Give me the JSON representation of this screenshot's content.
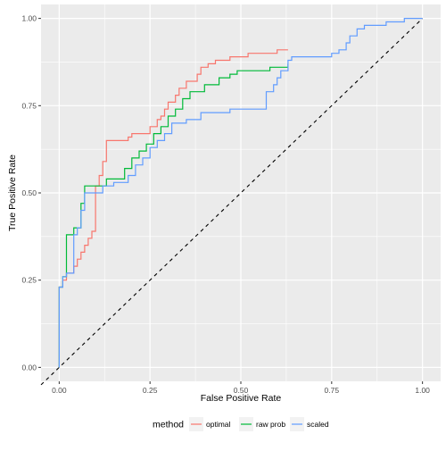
{
  "chart_data": {
    "type": "line",
    "xlabel": "False Positive Rate",
    "ylabel": "True Positive Rate",
    "xlim": [
      -0.05,
      1.05
    ],
    "ylim": [
      -0.04,
      1.04
    ],
    "x_ticks": [
      "0.00",
      "0.25",
      "0.50",
      "0.75",
      "1.00"
    ],
    "y_ticks": [
      "0.00",
      "0.25",
      "0.50",
      "0.75",
      "1.00"
    ],
    "grid": true,
    "legend": {
      "title": "method",
      "position": "bottom"
    },
    "reference_line": {
      "from": [
        0,
        0
      ],
      "to": [
        1,
        1
      ],
      "style": "dashed",
      "color": "#000000"
    },
    "series": [
      {
        "name": "optimal",
        "color": "#F8766D",
        "points": [
          [
            0.0,
            0.0
          ],
          [
            0.0,
            0.23
          ],
          [
            0.01,
            0.23
          ],
          [
            0.01,
            0.25
          ],
          [
            0.02,
            0.25
          ],
          [
            0.02,
            0.27
          ],
          [
            0.04,
            0.27
          ],
          [
            0.04,
            0.29
          ],
          [
            0.05,
            0.29
          ],
          [
            0.05,
            0.31
          ],
          [
            0.06,
            0.31
          ],
          [
            0.06,
            0.33
          ],
          [
            0.07,
            0.33
          ],
          [
            0.07,
            0.35
          ],
          [
            0.08,
            0.35
          ],
          [
            0.08,
            0.37
          ],
          [
            0.09,
            0.37
          ],
          [
            0.09,
            0.39
          ],
          [
            0.1,
            0.39
          ],
          [
            0.1,
            0.52
          ],
          [
            0.11,
            0.52
          ],
          [
            0.11,
            0.55
          ],
          [
            0.12,
            0.55
          ],
          [
            0.12,
            0.59
          ],
          [
            0.13,
            0.59
          ],
          [
            0.13,
            0.65
          ],
          [
            0.19,
            0.65
          ],
          [
            0.19,
            0.66
          ],
          [
            0.2,
            0.66
          ],
          [
            0.2,
            0.67
          ],
          [
            0.25,
            0.67
          ],
          [
            0.25,
            0.69
          ],
          [
            0.27,
            0.69
          ],
          [
            0.27,
            0.71
          ],
          [
            0.28,
            0.71
          ],
          [
            0.28,
            0.72
          ],
          [
            0.29,
            0.72
          ],
          [
            0.29,
            0.74
          ],
          [
            0.3,
            0.74
          ],
          [
            0.3,
            0.76
          ],
          [
            0.32,
            0.76
          ],
          [
            0.32,
            0.78
          ],
          [
            0.33,
            0.78
          ],
          [
            0.33,
            0.8
          ],
          [
            0.35,
            0.8
          ],
          [
            0.35,
            0.82
          ],
          [
            0.38,
            0.82
          ],
          [
            0.38,
            0.84
          ],
          [
            0.39,
            0.84
          ],
          [
            0.39,
            0.86
          ],
          [
            0.41,
            0.86
          ],
          [
            0.41,
            0.87
          ],
          [
            0.43,
            0.87
          ],
          [
            0.43,
            0.88
          ],
          [
            0.47,
            0.88
          ],
          [
            0.47,
            0.89
          ],
          [
            0.52,
            0.89
          ],
          [
            0.52,
            0.9
          ],
          [
            0.6,
            0.9
          ],
          [
            0.6,
            0.91
          ],
          [
            0.63,
            0.91
          ]
        ]
      },
      {
        "name": "raw prob",
        "color": "#00BA38",
        "points": [
          [
            0.0,
            0.0
          ],
          [
            0.0,
            0.23
          ],
          [
            0.01,
            0.23
          ],
          [
            0.01,
            0.26
          ],
          [
            0.02,
            0.26
          ],
          [
            0.02,
            0.38
          ],
          [
            0.04,
            0.38
          ],
          [
            0.04,
            0.4
          ],
          [
            0.06,
            0.4
          ],
          [
            0.06,
            0.47
          ],
          [
            0.07,
            0.47
          ],
          [
            0.07,
            0.52
          ],
          [
            0.13,
            0.52
          ],
          [
            0.13,
            0.54
          ],
          [
            0.18,
            0.54
          ],
          [
            0.18,
            0.57
          ],
          [
            0.2,
            0.57
          ],
          [
            0.2,
            0.6
          ],
          [
            0.22,
            0.6
          ],
          [
            0.22,
            0.62
          ],
          [
            0.24,
            0.62
          ],
          [
            0.24,
            0.64
          ],
          [
            0.26,
            0.64
          ],
          [
            0.26,
            0.67
          ],
          [
            0.28,
            0.67
          ],
          [
            0.28,
            0.69
          ],
          [
            0.3,
            0.69
          ],
          [
            0.3,
            0.72
          ],
          [
            0.32,
            0.72
          ],
          [
            0.32,
            0.74
          ],
          [
            0.34,
            0.74
          ],
          [
            0.34,
            0.77
          ],
          [
            0.36,
            0.77
          ],
          [
            0.36,
            0.79
          ],
          [
            0.4,
            0.79
          ],
          [
            0.4,
            0.81
          ],
          [
            0.44,
            0.81
          ],
          [
            0.44,
            0.83
          ],
          [
            0.47,
            0.83
          ],
          [
            0.47,
            0.84
          ],
          [
            0.49,
            0.84
          ],
          [
            0.49,
            0.85
          ],
          [
            0.58,
            0.85
          ],
          [
            0.58,
            0.86
          ],
          [
            0.63,
            0.86
          ],
          [
            0.63,
            0.87
          ]
        ]
      },
      {
        "name": "scaled",
        "color": "#619CFF",
        "points": [
          [
            0.0,
            0.0
          ],
          [
            0.0,
            0.23
          ],
          [
            0.01,
            0.23
          ],
          [
            0.01,
            0.26
          ],
          [
            0.02,
            0.26
          ],
          [
            0.02,
            0.27
          ],
          [
            0.04,
            0.27
          ],
          [
            0.04,
            0.38
          ],
          [
            0.05,
            0.38
          ],
          [
            0.05,
            0.4
          ],
          [
            0.06,
            0.4
          ],
          [
            0.06,
            0.45
          ],
          [
            0.07,
            0.45
          ],
          [
            0.07,
            0.5
          ],
          [
            0.12,
            0.5
          ],
          [
            0.12,
            0.52
          ],
          [
            0.15,
            0.52
          ],
          [
            0.15,
            0.53
          ],
          [
            0.19,
            0.53
          ],
          [
            0.19,
            0.55
          ],
          [
            0.21,
            0.55
          ],
          [
            0.21,
            0.58
          ],
          [
            0.23,
            0.58
          ],
          [
            0.23,
            0.6
          ],
          [
            0.25,
            0.6
          ],
          [
            0.25,
            0.63
          ],
          [
            0.27,
            0.63
          ],
          [
            0.27,
            0.65
          ],
          [
            0.29,
            0.65
          ],
          [
            0.29,
            0.67
          ],
          [
            0.31,
            0.67
          ],
          [
            0.31,
            0.7
          ],
          [
            0.35,
            0.7
          ],
          [
            0.35,
            0.71
          ],
          [
            0.39,
            0.71
          ],
          [
            0.39,
            0.73
          ],
          [
            0.47,
            0.73
          ],
          [
            0.47,
            0.74
          ],
          [
            0.57,
            0.74
          ],
          [
            0.57,
            0.79
          ],
          [
            0.59,
            0.79
          ],
          [
            0.59,
            0.81
          ],
          [
            0.6,
            0.81
          ],
          [
            0.6,
            0.83
          ],
          [
            0.61,
            0.83
          ],
          [
            0.61,
            0.85
          ],
          [
            0.63,
            0.85
          ],
          [
            0.63,
            0.88
          ],
          [
            0.64,
            0.88
          ],
          [
            0.64,
            0.89
          ],
          [
            0.75,
            0.89
          ],
          [
            0.75,
            0.9
          ],
          [
            0.77,
            0.9
          ],
          [
            0.77,
            0.91
          ],
          [
            0.79,
            0.91
          ],
          [
            0.79,
            0.93
          ],
          [
            0.8,
            0.93
          ],
          [
            0.8,
            0.95
          ],
          [
            0.82,
            0.95
          ],
          [
            0.82,
            0.97
          ],
          [
            0.84,
            0.97
          ],
          [
            0.84,
            0.98
          ],
          [
            0.9,
            0.98
          ],
          [
            0.9,
            0.99
          ],
          [
            0.95,
            0.99
          ],
          [
            0.95,
            1.0
          ],
          [
            1.0,
            1.0
          ]
        ]
      }
    ]
  }
}
